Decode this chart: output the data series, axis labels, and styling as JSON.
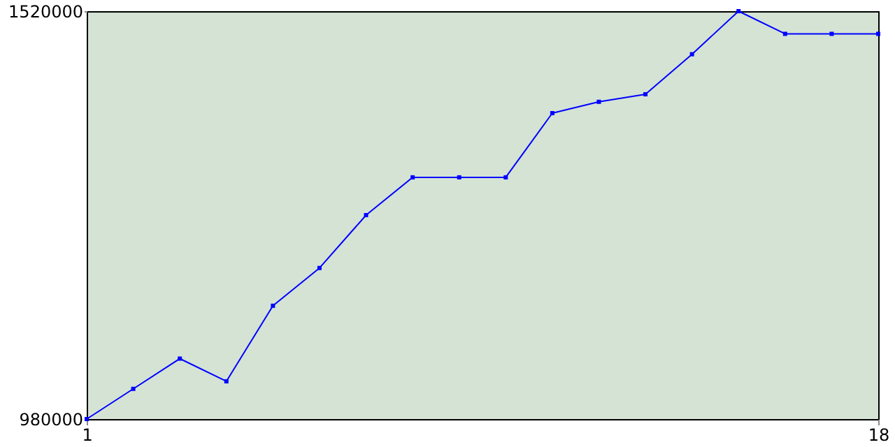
{
  "chart_data": {
    "type": "line",
    "x": [
      1,
      2,
      3,
      4,
      5,
      6,
      7,
      8,
      9,
      10,
      11,
      12,
      13,
      14,
      15,
      16,
      17,
      18
    ],
    "series": [
      {
        "color": "#0000ff",
        "values": [
          980000,
          1020000,
          1060000,
          1030000,
          1130000,
          1180000,
          1250000,
          1300000,
          1300000,
          1300000,
          1385000,
          1400000,
          1410000,
          1463000,
          1520000,
          1490000,
          1490000,
          1490000
        ]
      }
    ],
    "xlim": [
      1,
      18
    ],
    "xticks": [
      1,
      18
    ],
    "ylim": [
      980000,
      1520000
    ],
    "yticks": [
      980000,
      1520000
    ],
    "marker": "square",
    "line_style": "solid",
    "grid": false
  }
}
